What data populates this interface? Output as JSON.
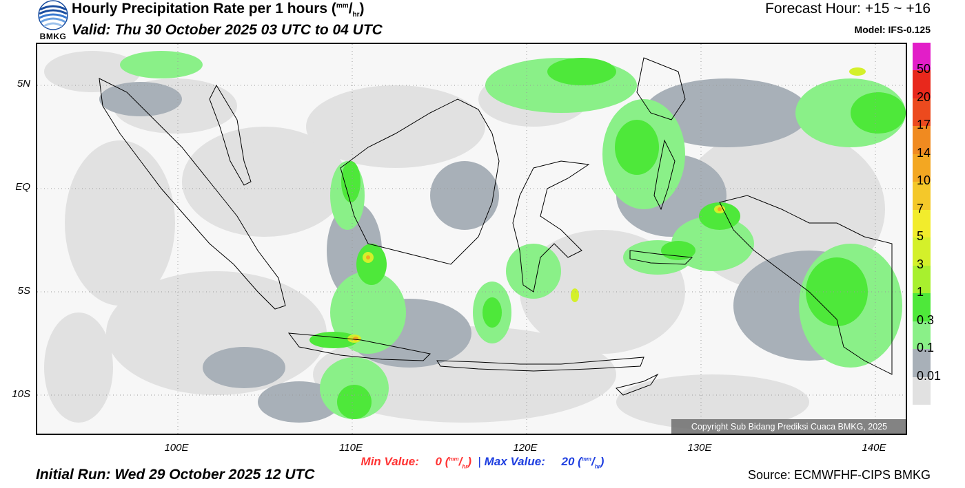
{
  "header": {
    "title_main": "Hourly Precipitation Rate per 1 hours (",
    "title_unit_num": "mm",
    "title_unit_sep": "/",
    "title_unit_den": "hr",
    "title_close": ")",
    "valid": "Valid: Thu 30 October 2025 03 UTC to 04 UTC",
    "forecast_hour": "Forecast Hour: +15 ~ +16",
    "model": "Model: IFS-0.125",
    "logo_text": "BMKG"
  },
  "map": {
    "lat_labels": [
      "5N",
      "EQ",
      "5S",
      "10S"
    ],
    "lon_labels": [
      "100E",
      "110E",
      "120E",
      "130E",
      "140E"
    ],
    "copyright": "Copyright Sub Bidang Prediksi Cuaca BMKG, 2025"
  },
  "legend": {
    "labels": [
      "50",
      "20",
      "17",
      "14",
      "10",
      "7",
      "5",
      "3",
      "1",
      "0.3",
      "0.1",
      "0.01"
    ],
    "colors": [
      "#e21ec8",
      "#e8281c",
      "#ec4a1e",
      "#f08a20",
      "#f3a722",
      "#f4c82a",
      "#f2ec2c",
      "#d4f02a",
      "#a8f02e",
      "#4ee83a",
      "#8af088",
      "#a8b0b8",
      "#e1e1e1"
    ]
  },
  "footer": {
    "min_label": "Min Value:",
    "min_value": "0",
    "max_label": "Max Value:",
    "max_value": "20",
    "unit_num": "mm",
    "unit_den": "hr",
    "separator": "|",
    "initial_run": "Initial Run: Wed 29 October 2025 12 UTC",
    "source": "Source: ECMWFHF-CIPS BMKG"
  }
}
